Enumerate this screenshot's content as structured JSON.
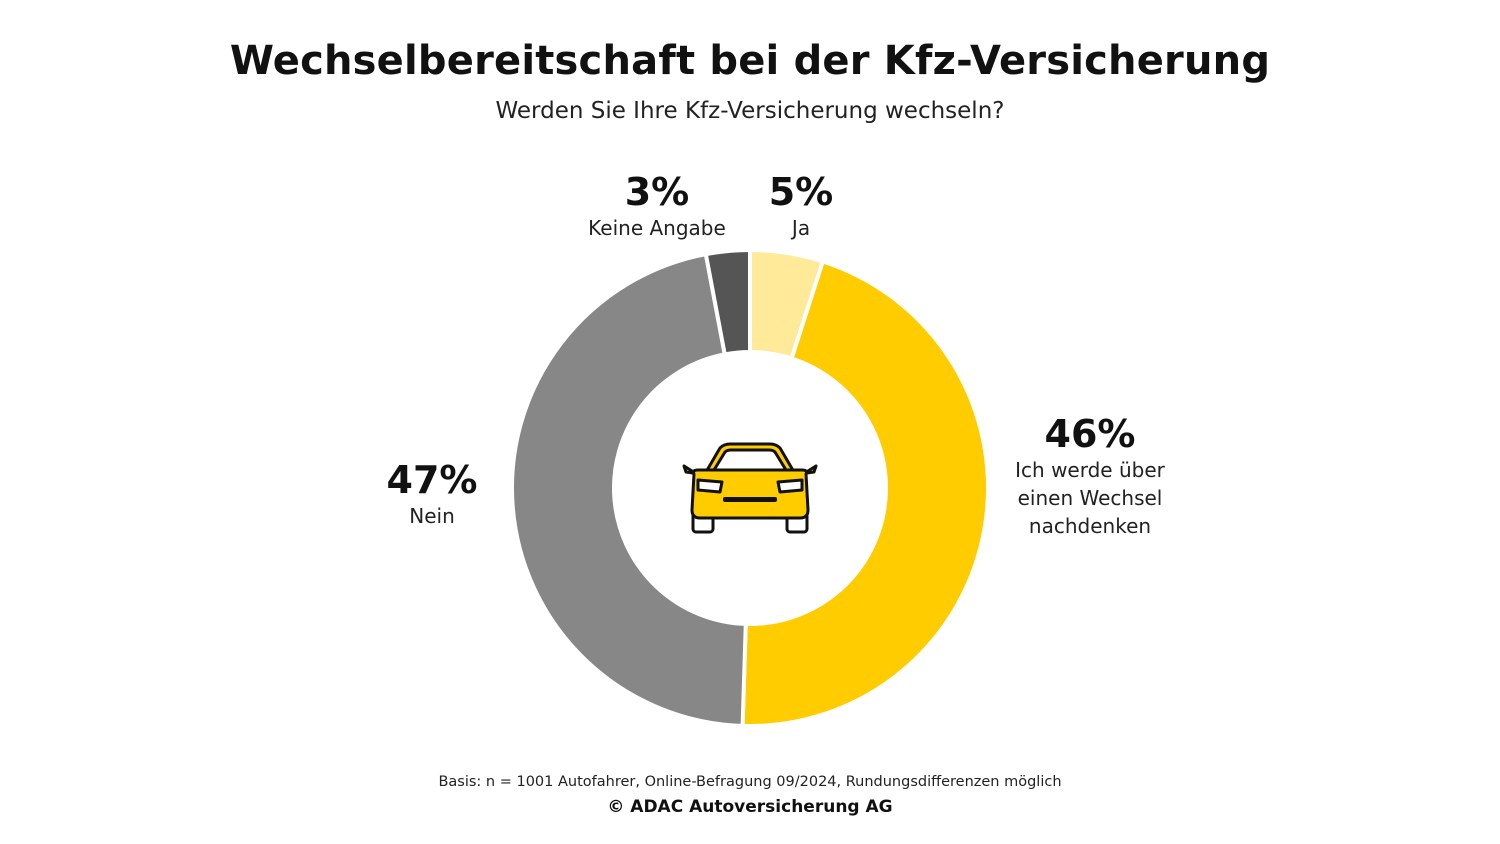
{
  "title": "Wechselbereitschaft bei der Kfz-Versicherung",
  "subtitle": "Werden Sie Ihre Kfz-Versicherung wechseln?",
  "center_icon": "car-front-icon",
  "chart_data": {
    "type": "pie",
    "variant": "donut",
    "title": "Wechselbereitschaft bei der Kfz-Versicherung",
    "subtitle": "Werden Sie Ihre Kfz-Versicherung wechseln?",
    "slices": [
      {
        "label": "Ja",
        "value": 5,
        "display": "5%",
        "color": "#FFEA99"
      },
      {
        "label": "Ich werde über\neinen Wechsel\nnachdenken",
        "value": 46,
        "display": "46%",
        "color": "#FFCC00"
      },
      {
        "label": "Nein",
        "value": 47,
        "display": "47%",
        "color": "#878787"
      },
      {
        "label": "Keine Angabe",
        "value": 3,
        "display": "3%",
        "color": "#555555"
      }
    ],
    "start": "top",
    "direction": "clockwise",
    "legend": "none"
  },
  "footnote": "Basis: n = 1001 Autofahrer, Online-Befragung 09/2024, Rundungsdifferenzen möglich",
  "copyright": "© ADAC Autoversicherung AG"
}
